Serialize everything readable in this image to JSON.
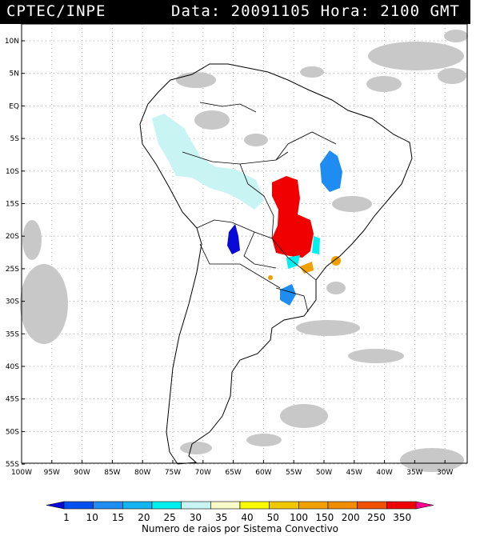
{
  "header": {
    "source": "CPTEC/INPE",
    "date_label": "Data:",
    "date": "20091105",
    "hour_label": "Hora:",
    "hour": "2100",
    "tz": "GMT"
  },
  "map": {
    "lat_labels": [
      "10N",
      "5N",
      "EQ",
      "5S",
      "10S",
      "15S",
      "20S",
      "25S",
      "30S",
      "35S",
      "40S",
      "45S",
      "50S",
      "55S"
    ],
    "lon_labels": [
      "100W",
      "95W",
      "90W",
      "85W",
      "80W",
      "75W",
      "70W",
      "65W",
      "60W",
      "55W",
      "50W",
      "45W",
      "40W",
      "35W",
      "30W"
    ]
  },
  "legend": {
    "tick_labels": [
      "1",
      "10",
      "15",
      "20",
      "25",
      "30",
      "35",
      "40",
      "50",
      "100",
      "150",
      "200",
      "250",
      "350"
    ],
    "colors": [
      "#0a0ad8",
      "#0050f0",
      "#1e8cf0",
      "#14b4f0",
      "#00f0f0",
      "#c8f4f4",
      "#fafac8",
      "#fafa00",
      "#f0c800",
      "#f0a000",
      "#f08c00",
      "#f05000",
      "#f00000",
      "#ff0090"
    ],
    "caption": "Numero de raios por Sistema Convectivo"
  }
}
